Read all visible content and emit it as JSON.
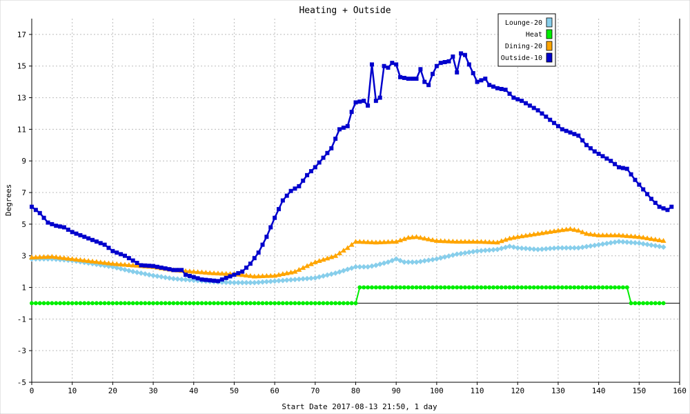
{
  "chart_data": {
    "type": "line",
    "title": "Heating + Outside",
    "xlabel": "Start Date 2017-08-13 21:50, 1 day",
    "ylabel": "Degrees",
    "xlim": [
      0,
      160
    ],
    "ylim": [
      -5,
      18
    ],
    "x_ticks": [
      "0",
      "10",
      "20",
      "30",
      "40",
      "50",
      "60",
      "70",
      "80",
      "90",
      "100",
      "110",
      "120",
      "130",
      "140",
      "150",
      "160"
    ],
    "y_ticks": [
      "-5",
      "-3",
      "-1",
      "1",
      "3",
      "5",
      "7",
      "9",
      "11",
      "13",
      "15",
      "17"
    ],
    "grid": true,
    "legend_position": "top-right",
    "series": [
      {
        "name": "Lounge-20",
        "color": "#87ceeb",
        "marker": "diamond",
        "values": [
          [
            0,
            2.8
          ],
          [
            5,
            2.8
          ],
          [
            10,
            2.7
          ],
          [
            15,
            2.5
          ],
          [
            20,
            2.3
          ],
          [
            25,
            2.0
          ],
          [
            30,
            1.75
          ],
          [
            35,
            1.55
          ],
          [
            40,
            1.45
          ],
          [
            45,
            1.35
          ],
          [
            50,
            1.3
          ],
          [
            55,
            1.3
          ],
          [
            60,
            1.4
          ],
          [
            65,
            1.5
          ],
          [
            70,
            1.6
          ],
          [
            75,
            1.9
          ],
          [
            80,
            2.3
          ],
          [
            83,
            2.3
          ],
          [
            85,
            2.4
          ],
          [
            88,
            2.6
          ],
          [
            90,
            2.8
          ],
          [
            92,
            2.6
          ],
          [
            95,
            2.6
          ],
          [
            100,
            2.8
          ],
          [
            105,
            3.1
          ],
          [
            110,
            3.3
          ],
          [
            115,
            3.4
          ],
          [
            118,
            3.6
          ],
          [
            120,
            3.5
          ],
          [
            125,
            3.4
          ],
          [
            130,
            3.5
          ],
          [
            135,
            3.5
          ],
          [
            140,
            3.7
          ],
          [
            145,
            3.9
          ],
          [
            150,
            3.8
          ],
          [
            156,
            3.55
          ]
        ]
      },
      {
        "name": "Heat",
        "color": "#00ee00",
        "marker": "circle",
        "values": [
          [
            0,
            0
          ],
          [
            80,
            0
          ],
          [
            81,
            1
          ],
          [
            147,
            1
          ],
          [
            148,
            0
          ],
          [
            156,
            0
          ]
        ]
      },
      {
        "name": "Dining-20",
        "color": "#ffa500",
        "marker": "triangle",
        "values": [
          [
            0,
            2.9
          ],
          [
            5,
            2.95
          ],
          [
            10,
            2.8
          ],
          [
            15,
            2.65
          ],
          [
            20,
            2.5
          ],
          [
            25,
            2.4
          ],
          [
            30,
            2.3
          ],
          [
            35,
            2.1
          ],
          [
            40,
            2.0
          ],
          [
            45,
            1.9
          ],
          [
            50,
            1.85
          ],
          [
            55,
            1.7
          ],
          [
            60,
            1.75
          ],
          [
            65,
            2.0
          ],
          [
            70,
            2.6
          ],
          [
            75,
            3.0
          ],
          [
            78,
            3.5
          ],
          [
            80,
            3.9
          ],
          [
            85,
            3.85
          ],
          [
            90,
            3.9
          ],
          [
            93,
            4.15
          ],
          [
            95,
            4.2
          ],
          [
            100,
            3.95
          ],
          [
            105,
            3.9
          ],
          [
            110,
            3.9
          ],
          [
            115,
            3.85
          ],
          [
            118,
            4.1
          ],
          [
            120,
            4.2
          ],
          [
            125,
            4.4
          ],
          [
            130,
            4.6
          ],
          [
            133,
            4.7
          ],
          [
            135,
            4.6
          ],
          [
            137,
            4.4
          ],
          [
            140,
            4.3
          ],
          [
            145,
            4.3
          ],
          [
            150,
            4.2
          ],
          [
            156,
            3.95
          ]
        ]
      },
      {
        "name": "Outside-10",
        "color": "#0000cc",
        "marker": "square",
        "values": [
          [
            0,
            6.1
          ],
          [
            2,
            5.7
          ],
          [
            4,
            5.1
          ],
          [
            6,
            4.9
          ],
          [
            8,
            4.8
          ],
          [
            10,
            4.5
          ],
          [
            12,
            4.3
          ],
          [
            15,
            4.0
          ],
          [
            18,
            3.7
          ],
          [
            20,
            3.3
          ],
          [
            23,
            3.0
          ],
          [
            25,
            2.7
          ],
          [
            27,
            2.4
          ],
          [
            30,
            2.35
          ],
          [
            33,
            2.2
          ],
          [
            35,
            2.1
          ],
          [
            37,
            2.1
          ],
          [
            38,
            1.8
          ],
          [
            40,
            1.65
          ],
          [
            42,
            1.5
          ],
          [
            44,
            1.45
          ],
          [
            46,
            1.4
          ],
          [
            48,
            1.6
          ],
          [
            50,
            1.8
          ],
          [
            52,
            2.0
          ],
          [
            54,
            2.5
          ],
          [
            56,
            3.2
          ],
          [
            58,
            4.2
          ],
          [
            60,
            5.4
          ],
          [
            62,
            6.5
          ],
          [
            64,
            7.1
          ],
          [
            66,
            7.4
          ],
          [
            68,
            8.1
          ],
          [
            70,
            8.6
          ],
          [
            72,
            9.2
          ],
          [
            74,
            9.8
          ],
          [
            76,
            11.0
          ],
          [
            78,
            11.2
          ],
          [
            79,
            12.1
          ],
          [
            80,
            12.7
          ],
          [
            82,
            12.8
          ],
          [
            83,
            12.5
          ],
          [
            84,
            15.1
          ],
          [
            85,
            12.8
          ],
          [
            86,
            13.0
          ],
          [
            87,
            15.0
          ],
          [
            88,
            14.9
          ],
          [
            89,
            15.2
          ],
          [
            90,
            15.1
          ],
          [
            91,
            14.3
          ],
          [
            93,
            14.2
          ],
          [
            95,
            14.2
          ],
          [
            96,
            14.8
          ],
          [
            97,
            14.0
          ],
          [
            98,
            13.8
          ],
          [
            99,
            14.5
          ],
          [
            100,
            15.0
          ],
          [
            101,
            15.2
          ],
          [
            103,
            15.3
          ],
          [
            104,
            15.6
          ],
          [
            105,
            14.6
          ],
          [
            106,
            15.8
          ],
          [
            107,
            15.7
          ],
          [
            108,
            15.1
          ],
          [
            110,
            14.0
          ],
          [
            112,
            14.2
          ],
          [
            113,
            13.8
          ],
          [
            115,
            13.6
          ],
          [
            117,
            13.5
          ],
          [
            119,
            13.0
          ],
          [
            121,
            12.8
          ],
          [
            123,
            12.5
          ],
          [
            125,
            12.2
          ],
          [
            127,
            11.8
          ],
          [
            129,
            11.4
          ],
          [
            131,
            11.0
          ],
          [
            133,
            10.8
          ],
          [
            135,
            10.6
          ],
          [
            137,
            10.0
          ],
          [
            139,
            9.6
          ],
          [
            141,
            9.3
          ],
          [
            143,
            9.0
          ],
          [
            145,
            8.6
          ],
          [
            147,
            8.5
          ],
          [
            149,
            7.8
          ],
          [
            151,
            7.2
          ],
          [
            153,
            6.6
          ],
          [
            155,
            6.1
          ],
          [
            157,
            5.9
          ],
          [
            158,
            6.1
          ]
        ]
      }
    ]
  }
}
